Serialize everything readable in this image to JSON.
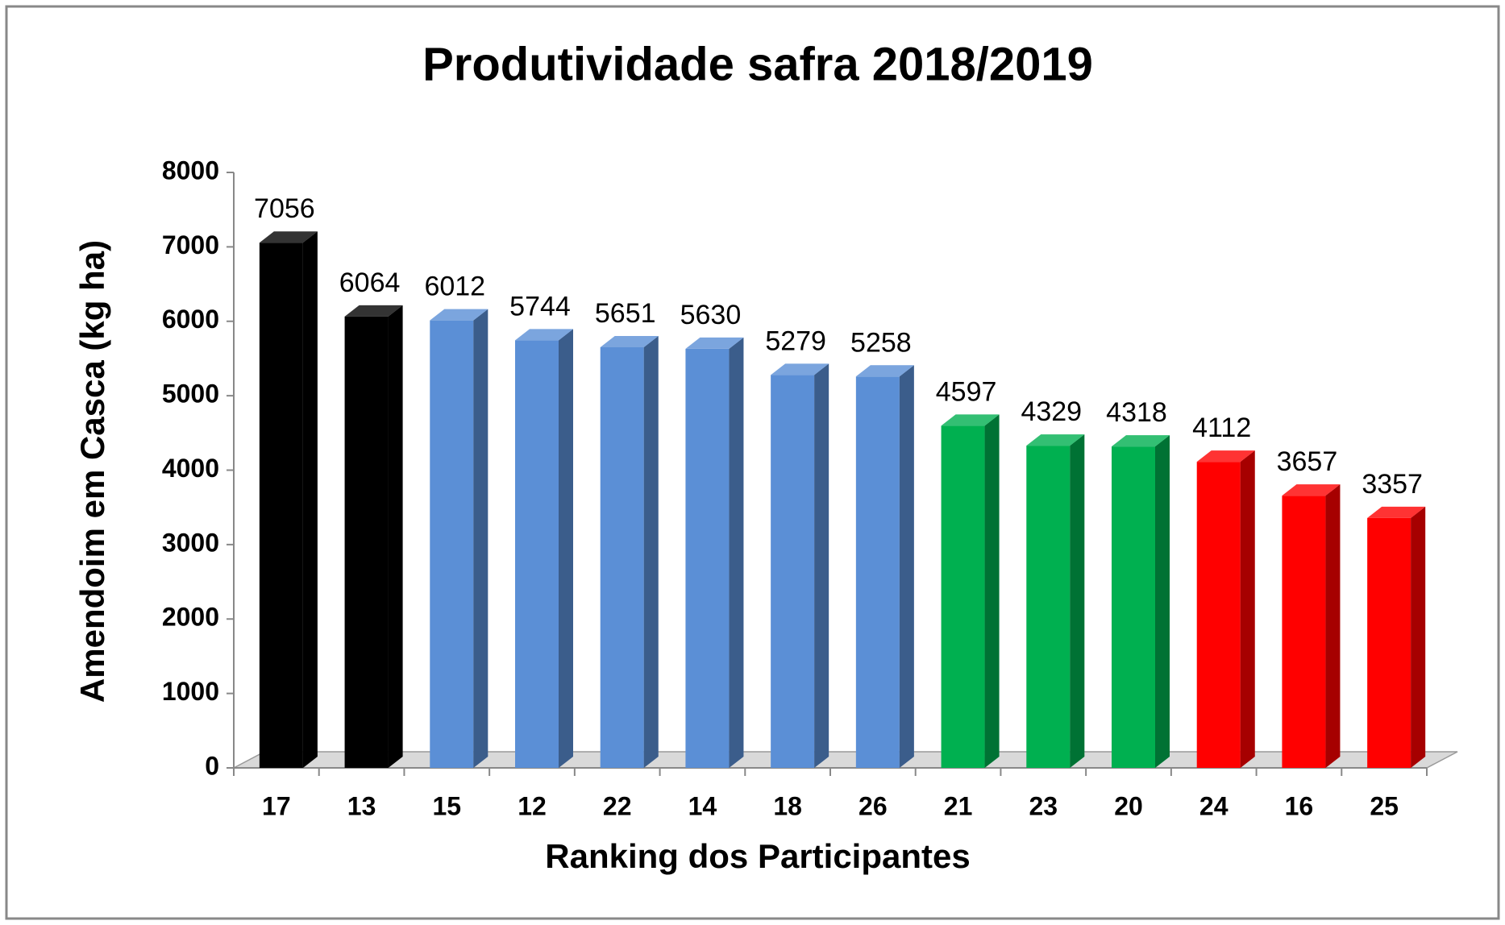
{
  "chart_data": {
    "type": "bar",
    "title": "Produtividade safra 2018/2019",
    "xlabel": "Ranking dos Participantes",
    "ylabel": "Amendoim em Casca (kg ha)",
    "categories": [
      "17",
      "13",
      "15",
      "12",
      "22",
      "14",
      "18",
      "26",
      "21",
      "23",
      "20",
      "24",
      "16",
      "25"
    ],
    "values": [
      7056,
      6064,
      6012,
      5744,
      5651,
      5630,
      5279,
      5258,
      4597,
      4329,
      4318,
      4112,
      3657,
      3357
    ],
    "colors": [
      "#000000",
      "#000000",
      "#5b8fd6",
      "#5b8fd6",
      "#5b8fd6",
      "#5b8fd6",
      "#5b8fd6",
      "#5b8fd6",
      "#00b050",
      "#00b050",
      "#00b050",
      "#ff0000",
      "#ff0000",
      "#ff0000"
    ],
    "ylim": [
      0,
      8000
    ],
    "yticks": [
      0,
      1000,
      2000,
      3000,
      4000,
      5000,
      6000,
      7000,
      8000
    ],
    "grid": false
  }
}
